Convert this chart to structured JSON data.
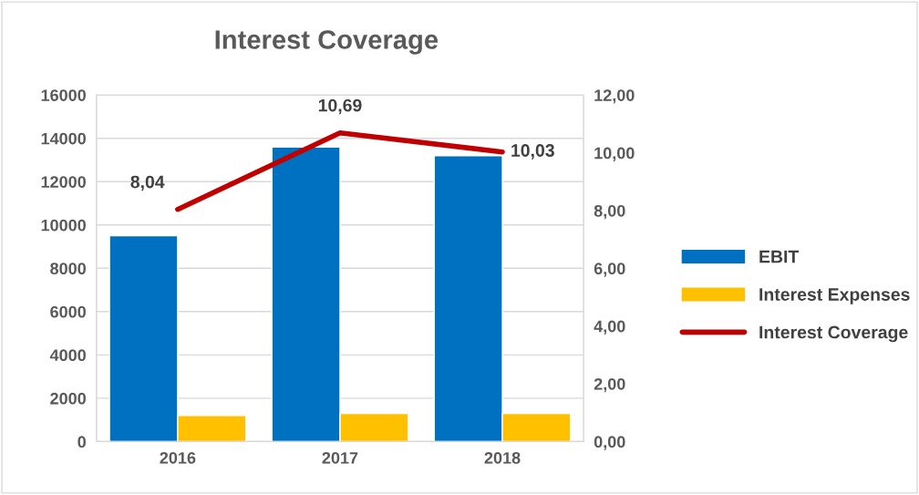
{
  "chart_data": {
    "type": "bar",
    "title": "Interest Coverage",
    "categories": [
      "2016",
      "2017",
      "2018"
    ],
    "series": [
      {
        "name": "EBIT",
        "color": "#0070c0",
        "values": [
          9500,
          13600,
          13200
        ]
      },
      {
        "name": "Interest Expenses",
        "color": "#ffc000",
        "values": [
          1200,
          1300,
          1300
        ]
      },
      {
        "name": "Interest Coverage",
        "type": "line",
        "axis": "y2",
        "color": "#c00000",
        "values": [
          8.04,
          10.69,
          10.03
        ],
        "value_labels": [
          "8,04",
          "10,69",
          "10,03"
        ]
      }
    ],
    "ylim": [
      0,
      16000
    ],
    "yticks": [
      0,
      2000,
      4000,
      6000,
      8000,
      10000,
      12000,
      14000,
      16000
    ],
    "y2lim": [
      0,
      12
    ],
    "y2ticks": [
      {
        "value": 0,
        "label": "0,00"
      },
      {
        "value": 2,
        "label": "2,00"
      },
      {
        "value": 4,
        "label": "4,00"
      },
      {
        "value": 6,
        "label": "6,00"
      },
      {
        "value": 8,
        "label": "8,00"
      },
      {
        "value": 10,
        "label": "10,00"
      },
      {
        "value": 12,
        "label": "12,00"
      }
    ],
    "grid": "y",
    "legend": "right"
  }
}
